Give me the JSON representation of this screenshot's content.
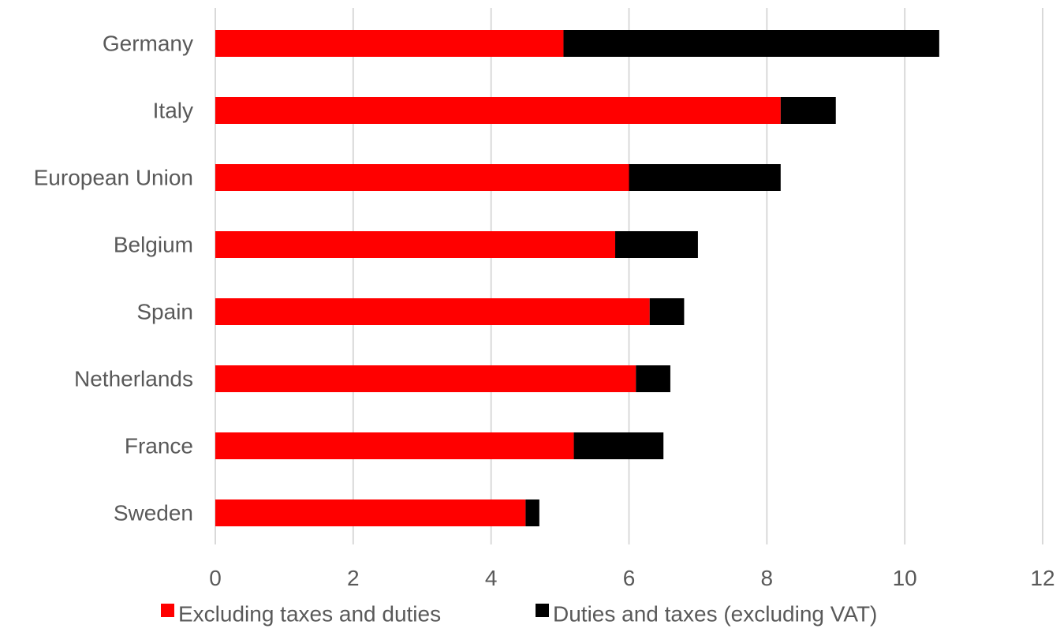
{
  "chart_data": {
    "type": "bar",
    "orientation": "horizontal",
    "stacked": true,
    "categories": [
      "Germany",
      "Italy",
      "European Union",
      "Belgium",
      "Spain",
      "Netherlands",
      "France",
      "Sweden"
    ],
    "series": [
      {
        "name": "Excluding taxes and duties",
        "color": "#ff0000",
        "values": [
          5.05,
          8.2,
          6.0,
          5.8,
          6.3,
          6.1,
          5.2,
          4.5
        ]
      },
      {
        "name": "Duties and taxes (excluding VAT)",
        "color": "#000000",
        "values": [
          5.45,
          0.8,
          2.2,
          1.2,
          0.5,
          0.5,
          1.3,
          0.2
        ]
      }
    ],
    "xlim": [
      0,
      12
    ],
    "x_ticks": [
      0,
      2,
      4,
      6,
      8,
      10,
      12
    ],
    "x_tick_labels": [
      "0",
      "2",
      "4",
      "6",
      "8",
      "10",
      "12"
    ],
    "grid": "vertical",
    "legend_position": "bottom"
  }
}
